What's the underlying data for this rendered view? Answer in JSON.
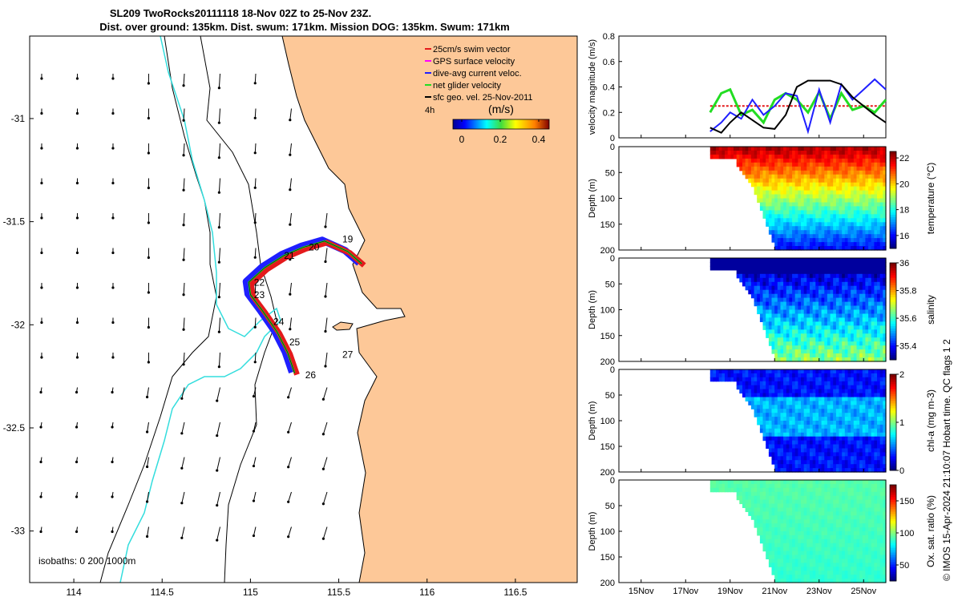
{
  "chart_data": [
    {
      "type": "map",
      "title_line1": "SL209 TwoRocks20111118 18-Nov 02Z to 25-Nov 23Z.",
      "title_line2": "Dist. over ground: 135km. Dist. swum: 171km. Mission DOG: 135km. Swum: 171km",
      "x_ticks": [
        {
          "value": 114,
          "label": "114"
        },
        {
          "value": 114.5,
          "label": "114.5"
        },
        {
          "value": 115,
          "label": "115"
        },
        {
          "value": 115.5,
          "label": "115.5"
        },
        {
          "value": 116,
          "label": "116"
        },
        {
          "value": 116.5,
          "label": "116.5"
        }
      ],
      "y_ticks": [
        {
          "value": -31,
          "label": "-31"
        },
        {
          "value": -31.5,
          "label": "-31.5"
        },
        {
          "value": -32,
          "label": "-32"
        },
        {
          "value": -32.5,
          "label": "-32.5"
        },
        {
          "value": -33,
          "label": "-33"
        }
      ],
      "xlim": [
        113.75,
        116.85
      ],
      "ylim": [
        -33.25,
        -30.6
      ],
      "legend": [
        {
          "label": "25cm/s swim vector",
          "color": "#e41a1c"
        },
        {
          "label": "GPS surface velocity",
          "color": "#ff00ff"
        },
        {
          "label": "dive-avg current veloc.",
          "color": "#1f1fff"
        },
        {
          "label": "net glider velocity",
          "color": "#22dd22"
        },
        {
          "label": "sfc geo. vel. 25-Nov-2011",
          "color": "#000000"
        }
      ],
      "colorbar": {
        "title": "(m/s)",
        "scale_label": "4h",
        "ticks": [
          {
            "value": 0,
            "label": "0"
          },
          {
            "value": 0.2,
            "label": "0.2"
          },
          {
            "value": 0.4,
            "label": "0.4"
          }
        ],
        "range": [
          0,
          0.5
        ]
      },
      "day_labels": [
        {
          "label": "19",
          "lon": 115.52,
          "lat": -31.6
        },
        {
          "label": "20",
          "lon": 115.33,
          "lat": -31.64
        },
        {
          "label": "21",
          "lon": 115.19,
          "lat": -31.68
        },
        {
          "label": "22",
          "lon": 115.02,
          "lat": -31.81
        },
        {
          "label": "23",
          "lon": 115.02,
          "lat": -31.87
        },
        {
          "label": "24",
          "lon": 115.13,
          "lat": -32.0
        },
        {
          "label": "25",
          "lon": 115.22,
          "lat": -32.1
        },
        {
          "label": "26",
          "lon": 115.31,
          "lat": -32.26
        },
        {
          "label": "27",
          "lon": 115.52,
          "lat": -32.16
        }
      ],
      "isobath_label": "isobaths: 0   200  1000m",
      "track": [
        {
          "lon": 115.63,
          "lat": -31.7
        },
        {
          "lon": 115.55,
          "lat": -31.64
        },
        {
          "lon": 115.42,
          "lat": -31.59
        },
        {
          "lon": 115.3,
          "lat": -31.62
        },
        {
          "lon": 115.19,
          "lat": -31.66
        },
        {
          "lon": 115.08,
          "lat": -31.72
        },
        {
          "lon": 114.99,
          "lat": -31.79
        },
        {
          "lon": 115.0,
          "lat": -31.85
        },
        {
          "lon": 115.07,
          "lat": -31.93
        },
        {
          "lon": 115.15,
          "lat": -32.03
        },
        {
          "lon": 115.21,
          "lat": -32.13
        },
        {
          "lon": 115.25,
          "lat": -32.23
        }
      ]
    },
    {
      "type": "line",
      "ylabel": "velocity magnitude (m/s)",
      "ylim": [
        0,
        0.8
      ],
      "y_ticks": [
        0,
        0.2,
        0.4,
        0.6,
        0.8
      ],
      "xlim": [
        14.0,
        26.0
      ],
      "x_ticks": [
        {
          "value": 15,
          "label": "15Nov"
        },
        {
          "value": 17,
          "label": "17Nov"
        },
        {
          "value": 19,
          "label": "19Nov"
        },
        {
          "value": 21,
          "label": "21Nov"
        },
        {
          "value": 23,
          "label": "23Nov"
        },
        {
          "value": 25,
          "label": "25Nov"
        }
      ],
      "series": [
        {
          "name": "swim",
          "color": "#e41a1c",
          "x": [
            18.1,
            26.0
          ],
          "values": [
            0.25,
            0.25
          ]
        },
        {
          "name": "net glider velocity",
          "color": "#22dd22",
          "x": [
            18.1,
            18.6,
            19.0,
            19.5,
            20.0,
            20.5,
            21.0,
            21.5,
            22.0,
            22.5,
            23.0,
            23.5,
            24.0,
            24.5,
            25.0,
            25.5,
            26.0
          ],
          "values": [
            0.2,
            0.35,
            0.38,
            0.18,
            0.22,
            0.12,
            0.3,
            0.35,
            0.3,
            0.2,
            0.36,
            0.15,
            0.35,
            0.22,
            0.25,
            0.2,
            0.3
          ]
        },
        {
          "name": "dive-avg current veloc.",
          "color": "#1f1fff",
          "x": [
            18.1,
            18.6,
            19.0,
            19.5,
            20.0,
            20.5,
            21.0,
            21.5,
            22.0,
            22.5,
            23.0,
            23.5,
            24.0,
            24.5,
            25.0,
            25.5,
            26.0
          ],
          "values": [
            0.05,
            0.12,
            0.2,
            0.15,
            0.3,
            0.18,
            0.25,
            0.35,
            0.33,
            0.05,
            0.38,
            0.12,
            0.42,
            0.3,
            0.38,
            0.46,
            0.38
          ]
        },
        {
          "name": "sfc geo. vel.",
          "color": "#000000",
          "x": [
            18.1,
            18.6,
            19.0,
            19.5,
            20.0,
            20.5,
            21.0,
            21.5,
            22.0,
            22.5,
            23.0,
            23.5,
            24.0,
            24.5,
            25.0,
            25.5,
            26.0
          ],
          "values": [
            0.08,
            0.04,
            0.12,
            0.2,
            0.14,
            0.08,
            0.07,
            0.18,
            0.4,
            0.45,
            0.45,
            0.45,
            0.42,
            0.32,
            0.25,
            0.18,
            0.12
          ]
        }
      ]
    },
    {
      "type": "heatmap",
      "variable": "temperature",
      "cbar_label": "temperature (°C)",
      "ylabel": "Depth (m)",
      "ylim": [
        0,
        200
      ],
      "y_ticks": [
        0,
        50,
        100,
        150,
        200
      ],
      "cmin": 15,
      "cmax": 22.5,
      "cbar_ticks": [
        16,
        18,
        20,
        22
      ]
    },
    {
      "type": "heatmap",
      "variable": "salinity",
      "cbar_label": "salinity",
      "ylabel": "Depth (m)",
      "ylim": [
        0,
        200
      ],
      "y_ticks": [
        0,
        50,
        100,
        150,
        200
      ],
      "cmin": 35.3,
      "cmax": 36.0,
      "cbar_ticks": [
        35.4,
        35.6,
        35.8,
        36
      ]
    },
    {
      "type": "heatmap",
      "variable": "chl-a",
      "cbar_label": "chl-a (mg m-3)",
      "ylabel": "Depth (m)",
      "ylim": [
        0,
        200
      ],
      "y_ticks": [
        0,
        50,
        100,
        150,
        200
      ],
      "cmin": 0,
      "cmax": 2,
      "cbar_ticks": [
        0,
        1,
        2
      ]
    },
    {
      "type": "heatmap",
      "variable": "oxygen",
      "cbar_label": "Ox. sat. ratio (%)",
      "ylabel": "Depth (m)",
      "ylim": [
        0,
        200
      ],
      "y_ticks": [
        0,
        50,
        100,
        150,
        200
      ],
      "cmin": 25,
      "cmax": 175,
      "cbar_ticks": [
        50,
        100,
        150
      ]
    }
  ],
  "footer": "© IMOS 15-Apr-2024 21:10:07 Hobart time. QC flags 1  2",
  "colors": {
    "land": "#fdc898",
    "ocean": "#ffffff",
    "isobath": "#33dddd"
  }
}
